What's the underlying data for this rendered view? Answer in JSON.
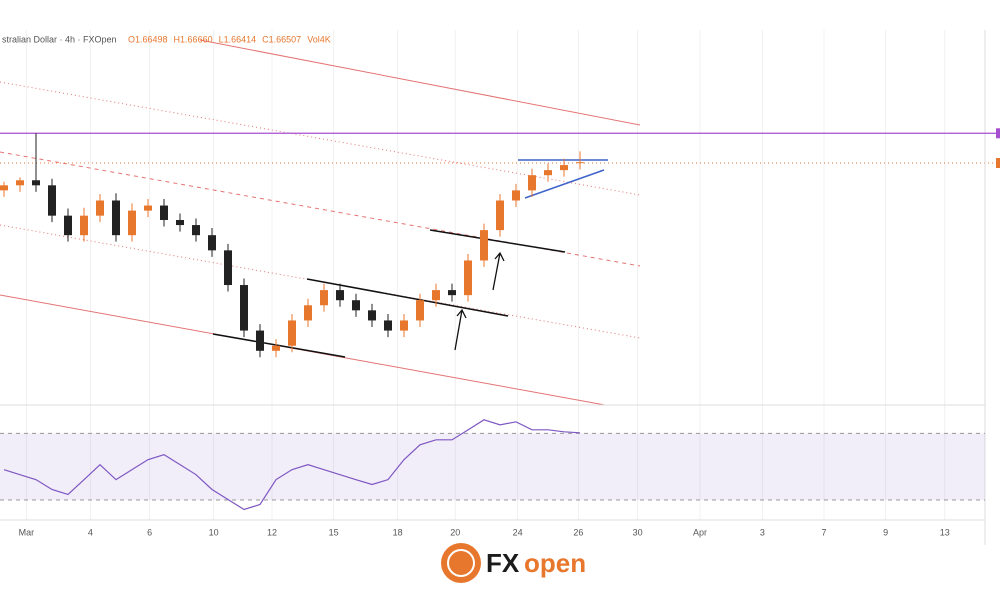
{
  "chart_data": [
    {
      "type": "candlestick",
      "title": "stralian Dollar · 4h · FXOpen",
      "ohlc_labels": [
        "O1.66498",
        "H1.66660",
        "L1.66414",
        "C1.66507",
        "Vol4K"
      ],
      "x": [
        0,
        1,
        2,
        3,
        4,
        5,
        6,
        7,
        8,
        9,
        10,
        11,
        12,
        13,
        14,
        15,
        16,
        17,
        18,
        19,
        20,
        21,
        22,
        23,
        24,
        25,
        26,
        27,
        28,
        29,
        30,
        31,
        32,
        33,
        34,
        35,
        36
      ],
      "open": [
        1.6612,
        1.6619,
        1.6626,
        1.6619,
        1.6577,
        1.655,
        1.6577,
        1.6598,
        1.655,
        1.6584,
        1.6591,
        1.6571,
        1.6564,
        1.655,
        1.6529,
        1.6481,
        1.6418,
        1.639,
        1.6397,
        1.6432,
        1.6453,
        1.6474,
        1.646,
        1.6446,
        1.6432,
        1.6418,
        1.6432,
        1.646,
        1.6474,
        1.6467,
        1.6515,
        1.6557,
        1.6598,
        1.6612,
        1.6633,
        1.664,
        1.665
      ],
      "high": [
        1.6624,
        1.663,
        1.6691,
        1.6628,
        1.6587,
        1.6588,
        1.6607,
        1.6608,
        1.6594,
        1.66,
        1.66,
        1.658,
        1.6573,
        1.656,
        1.6538,
        1.649,
        1.6427,
        1.6406,
        1.6441,
        1.6462,
        1.6483,
        1.6483,
        1.6469,
        1.6455,
        1.6441,
        1.6441,
        1.6469,
        1.6483,
        1.6483,
        1.6524,
        1.6566,
        1.6607,
        1.6621,
        1.6642,
        1.6649,
        1.6656,
        1.6666
      ],
      "low": [
        1.6603,
        1.661,
        1.661,
        1.6568,
        1.6541,
        1.6541,
        1.6568,
        1.6541,
        1.6541,
        1.6575,
        1.6562,
        1.6555,
        1.6541,
        1.652,
        1.6472,
        1.6409,
        1.6381,
        1.6381,
        1.6388,
        1.6423,
        1.6444,
        1.6451,
        1.6437,
        1.6423,
        1.6409,
        1.6409,
        1.6423,
        1.6451,
        1.6458,
        1.6458,
        1.6506,
        1.6548,
        1.6589,
        1.6603,
        1.6624,
        1.6631,
        1.6641
      ],
      "close": [
        1.6619,
        1.6626,
        1.6619,
        1.6577,
        1.655,
        1.6577,
        1.6598,
        1.655,
        1.6584,
        1.6591,
        1.6571,
        1.6564,
        1.655,
        1.6529,
        1.6481,
        1.6418,
        1.639,
        1.6397,
        1.6432,
        1.6453,
        1.6474,
        1.646,
        1.6446,
        1.6432,
        1.6418,
        1.6432,
        1.646,
        1.6474,
        1.6467,
        1.6515,
        1.6557,
        1.6598,
        1.6612,
        1.6633,
        1.664,
        1.6647,
        1.6651
      ],
      "up_color": "#e8772e",
      "down_color": "#222222",
      "hline": 1.6691,
      "hline_color": "#a64fd1",
      "xlim": [
        -0.25,
        62.25
      ],
      "xticks": [
        {
          "value": 1.4,
          "label": "Mar"
        },
        {
          "value": 5.4,
          "label": "4"
        },
        {
          "value": 9.1,
          "label": "6"
        },
        {
          "value": 13.1,
          "label": "10"
        },
        {
          "value": 16.75,
          "label": "12"
        },
        {
          "value": 20.6,
          "label": "15"
        },
        {
          "value": 24.6,
          "label": "18"
        },
        {
          "value": 28.2,
          "label": "20"
        },
        {
          "value": 32.1,
          "label": "24"
        },
        {
          "value": 35.9,
          "label": "26"
        },
        {
          "value": 39.6,
          "label": "30"
        },
        {
          "value": 43.5,
          "label": "Apr"
        },
        {
          "value": 47.4,
          "label": "3"
        },
        {
          "value": 51.25,
          "label": "7"
        },
        {
          "value": 55.1,
          "label": "9"
        },
        {
          "value": 58.8,
          "label": "13"
        }
      ],
      "ylim": [
        1.6315,
        1.6827
      ],
      "grid": true
    },
    {
      "type": "line",
      "x": [
        0,
        1,
        2,
        3,
        4,
        5,
        6,
        7,
        8,
        9,
        10,
        11,
        12,
        13,
        14,
        15,
        16,
        17,
        18,
        19,
        20,
        21,
        22,
        23,
        24,
        25,
        26,
        27,
        28,
        29,
        30,
        31,
        32,
        33,
        34,
        35,
        36
      ],
      "series": [
        {
          "color": "#7e57c2",
          "values": [
            48.2,
            45.2,
            42.2,
            36.3,
            33.3,
            42.2,
            51.2,
            42.2,
            48.2,
            54.2,
            57.2,
            51.2,
            45.2,
            36.3,
            30.3,
            24.3,
            27.3,
            42.2,
            48.2,
            51.2,
            48.2,
            45.2,
            42.2,
            39.3,
            42.2,
            54.2,
            63.1,
            66.1,
            66.1,
            72.1,
            78.1,
            75.1,
            76.9,
            72.1,
            72.1,
            70.9,
            70.3
          ]
        }
      ],
      "band": [
        30,
        70
      ],
      "band_color": "#9575cd",
      "xlim": [
        -0.25,
        62.25
      ],
      "ylim": [
        18,
        87
      ]
    }
  ],
  "logo": [
    "FX",
    "open"
  ]
}
